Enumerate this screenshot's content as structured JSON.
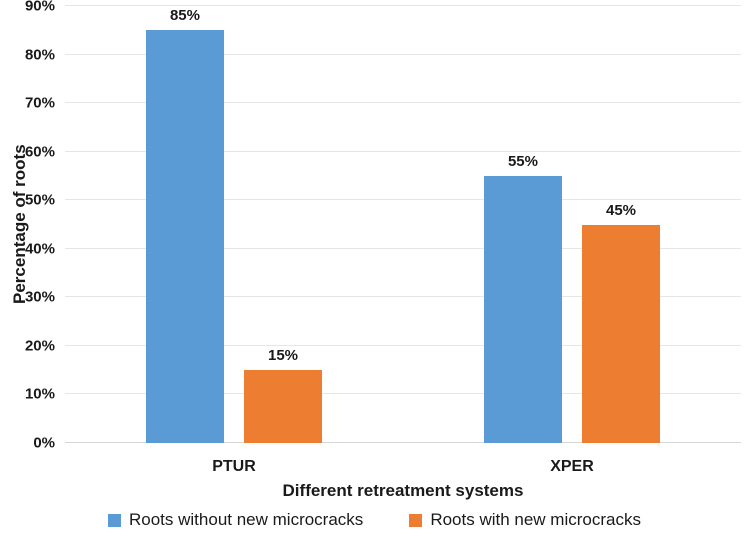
{
  "chart_data": {
    "type": "bar",
    "title": "",
    "categories": [
      "PTUR",
      "XPER"
    ],
    "series": [
      {
        "name": "Roots without new microcracks",
        "color": "#5B9BD5",
        "values": [
          85,
          55
        ]
      },
      {
        "name": "Roots with new microcracks",
        "color": "#ED7D31",
        "values": [
          15,
          45
        ]
      }
    ],
    "data_labels": [
      [
        "85%",
        "55%"
      ],
      [
        "15%",
        "45%"
      ]
    ],
    "xlabel": "Different retreatment systems",
    "ylabel": "Percentage of roots",
    "ylim": [
      0,
      90
    ],
    "ytick_labels": [
      "0%",
      "10%",
      "20%",
      "30%",
      "40%",
      "50%",
      "60%",
      "70%",
      "80%",
      "90%"
    ],
    "grid": true,
    "legend_position": "bottom"
  },
  "colors": {
    "series_blue": "#5B9BD5",
    "series_orange": "#ED7D31",
    "gridline": "#E7E6E6",
    "axis_line": "#D6D6D6",
    "text": "#1A1A1A",
    "background": "#FFFFFF"
  }
}
